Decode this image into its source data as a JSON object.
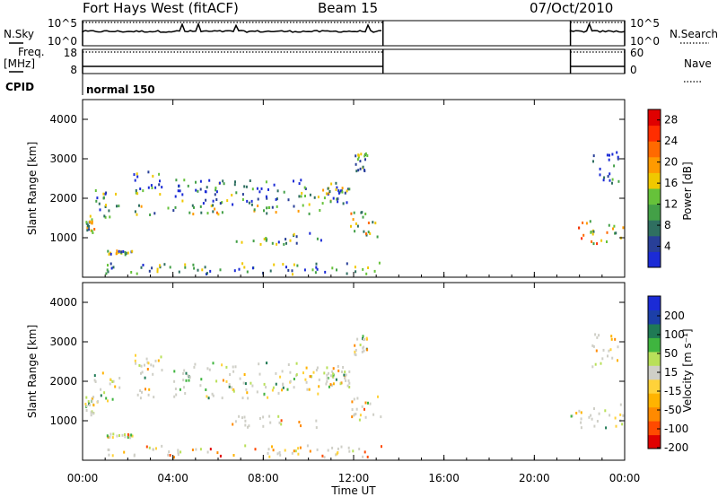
{
  "header": {
    "station": "Fort Hays West (fitACF)",
    "beam": "Beam 15",
    "date": "07/Oct/2010"
  },
  "side_labels": {
    "nsky": "N.Sky",
    "nsearch": "N.Search",
    "freq": "Freq.",
    "freq_unit": "[MHz]",
    "nave": "Nave",
    "cpid": "CPID"
  },
  "scales": {
    "noise_left_top": "10^5",
    "noise_left_bottom": "10^0",
    "noise_right_top": "10^5",
    "noise_right_bottom": "10^0",
    "freq_top": "18",
    "freq_bottom": "8",
    "nave_top": "60",
    "nave_bottom": "0"
  },
  "cpid_text": "normal 150",
  "colors": {
    "power": [
      "#1b2bd6",
      "#283f98",
      "#2f6f60",
      "#43a047",
      "#66c23a",
      "#f0c800",
      "#ff9a00",
      "#ff6a00",
      "#ff2d00",
      "#e00000"
    ],
    "velocity": [
      "#e00000",
      "#ff4a00",
      "#ff8a00",
      "#ffb300",
      "#ffd23a",
      "#cfcfc7",
      "#b9e05a",
      "#3fb53f",
      "#1f7a55",
      "#1c3fa8",
      "#1b2bd6"
    ]
  },
  "chart_data": [
    {
      "type": "heatmap",
      "panel": "power",
      "ylabel": "Slant Range [km]",
      "xlim": [
        "00:00",
        "24:00"
      ],
      "ylim": [
        0,
        4500
      ],
      "yticks": [
        "1000",
        "2000",
        "3000",
        "4000"
      ],
      "colorbar_label": "Power [dB]",
      "colorbar_ticks": [
        "4",
        "8",
        "12",
        "16",
        "20",
        "24",
        "28"
      ],
      "colorbar_range": [
        0,
        30
      ],
      "regions": [
        {
          "t0": 0.05,
          "t1": 0.5,
          "r0": 1150,
          "r1": 1650,
          "level": 0.45
        },
        {
          "t0": 0.5,
          "t1": 1.6,
          "r0": 1500,
          "r1": 2300,
          "level": 0.3
        },
        {
          "t0": 1.0,
          "t1": 2.2,
          "r0": 600,
          "r1": 700,
          "level": 0.35
        },
        {
          "t0": 2.2,
          "t1": 3.5,
          "r0": 2100,
          "r1": 2700,
          "level": 0.25
        },
        {
          "t0": 2.3,
          "t1": 10.5,
          "r0": 1600,
          "r1": 1850,
          "level": 0.45
        },
        {
          "t0": 4.0,
          "t1": 11.8,
          "r0": 1850,
          "r1": 2500,
          "level": 0.25
        },
        {
          "t0": 6.5,
          "t1": 10.6,
          "r0": 850,
          "r1": 1150,
          "level": 0.3
        },
        {
          "t0": 10.6,
          "t1": 11.8,
          "r0": 1900,
          "r1": 2300,
          "level": 0.35
        },
        {
          "t0": 11.8,
          "t1": 13.2,
          "r0": 1050,
          "r1": 1700,
          "level": 0.5
        },
        {
          "t0": 12.0,
          "t1": 12.6,
          "r0": 2700,
          "r1": 3200,
          "level": 0.3
        },
        {
          "t0": 1.0,
          "t1": 13.2,
          "r0": 100,
          "r1": 400,
          "level": 0.3
        },
        {
          "t0": 21.6,
          "t1": 23.9,
          "r0": 850,
          "r1": 1450,
          "level": 0.55
        },
        {
          "t0": 22.5,
          "t1": 23.7,
          "r0": 2400,
          "r1": 3300,
          "level": 0.2
        }
      ]
    },
    {
      "type": "heatmap",
      "panel": "velocity",
      "ylabel": "Slant Range [km]",
      "xlabel": "Time UT",
      "xlim": [
        "00:00",
        "24:00"
      ],
      "ylim": [
        0,
        4500
      ],
      "yticks": [
        "1000",
        "2000",
        "3000",
        "4000"
      ],
      "xticks": [
        "00:00",
        "04:00",
        "08:00",
        "12:00",
        "16:00",
        "20:00",
        "00:00"
      ],
      "colorbar_label": "Velocity [m s⁻¹]",
      "colorbar_ticks": [
        "200",
        "100",
        "50",
        "15",
        "-15",
        "-50",
        "-100",
        "-200"
      ],
      "colorbar_range": [
        -250,
        250
      ],
      "regions": [
        {
          "t0": 0.05,
          "t1": 0.5,
          "r0": 1150,
          "r1": 1650,
          "level": 0.5
        },
        {
          "t0": 0.5,
          "t1": 1.6,
          "r0": 1500,
          "r1": 2300,
          "level": 0.5
        },
        {
          "t0": 1.0,
          "t1": 2.2,
          "r0": 600,
          "r1": 700,
          "level": 0.45
        },
        {
          "t0": 2.2,
          "t1": 3.5,
          "r0": 2100,
          "r1": 2700,
          "level": 0.5
        },
        {
          "t0": 2.3,
          "t1": 10.5,
          "r0": 1600,
          "r1": 1850,
          "level": 0.5
        },
        {
          "t0": 4.0,
          "t1": 11.8,
          "r0": 1850,
          "r1": 2500,
          "level": 0.5
        },
        {
          "t0": 6.5,
          "t1": 10.6,
          "r0": 850,
          "r1": 1150,
          "level": 0.3
        },
        {
          "t0": 10.6,
          "t1": 11.8,
          "r0": 1900,
          "r1": 2300,
          "level": 0.5
        },
        {
          "t0": 11.8,
          "t1": 13.2,
          "r0": 1050,
          "r1": 1700,
          "level": 0.4
        },
        {
          "t0": 12.0,
          "t1": 12.6,
          "r0": 2700,
          "r1": 3200,
          "level": 0.5
        },
        {
          "t0": 1.0,
          "t1": 13.2,
          "r0": 100,
          "r1": 400,
          "level": 0.35
        },
        {
          "t0": 21.6,
          "t1": 23.9,
          "r0": 850,
          "r1": 1450,
          "level": 0.55
        },
        {
          "t0": 22.5,
          "t1": 23.7,
          "r0": 2400,
          "r1": 3300,
          "level": 0.5
        }
      ]
    }
  ]
}
